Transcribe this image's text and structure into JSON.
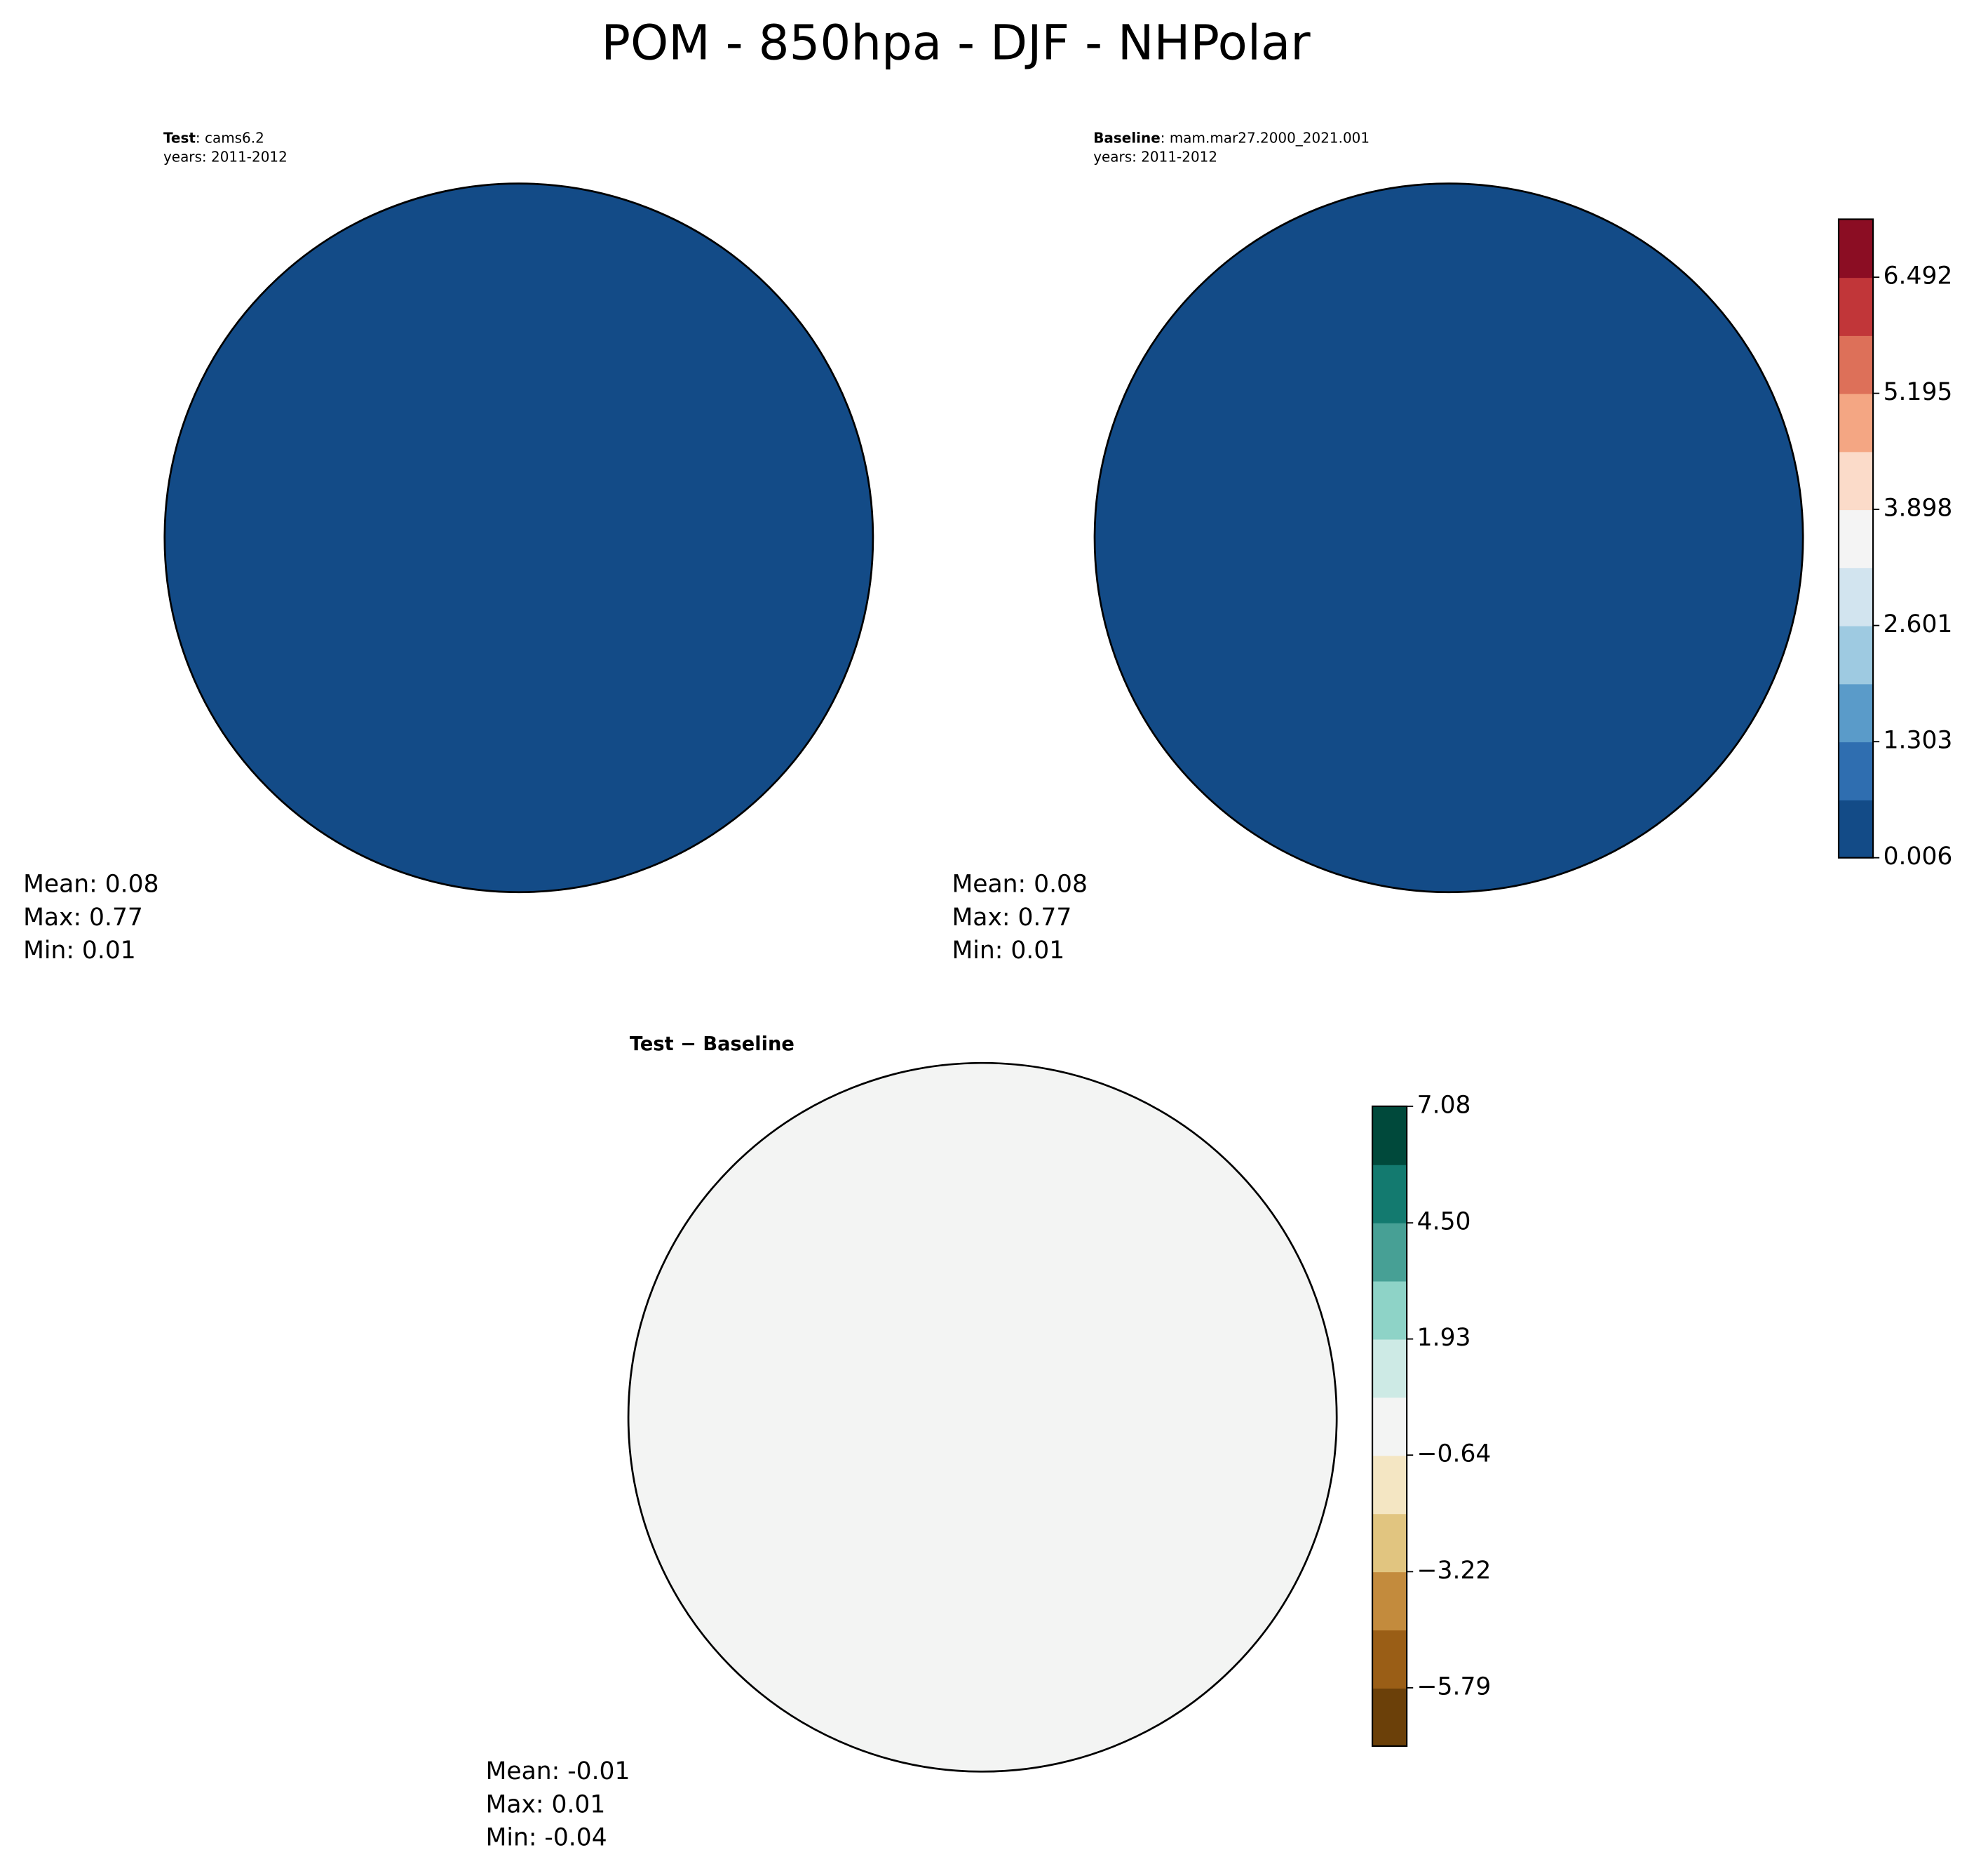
{
  "title": "POM - 850hpa - DJF - NHPolar",
  "chart_data": [
    {
      "type": "polar-map",
      "label_bold": "Test",
      "label_text": ": cams6.2",
      "subtitle": "years: 2011-2012",
      "color": "#134b87",
      "stats": [
        "Mean:  0.08",
        "Max:  0.77",
        "Min:  0.01"
      ]
    },
    {
      "type": "polar-map",
      "label_bold": "Baseline",
      "label_text": ": mam.mar27.2000_2021.001",
      "subtitle": "years: 2011-2012",
      "color": "#134b87",
      "stats": [
        "Mean:  0.08",
        "Max:  0.77",
        "Min:  0.01"
      ],
      "colorbar": {
        "ylim": [
          0.006,
          7.14
        ],
        "yticks": [
          0.006,
          1.303,
          2.601,
          3.898,
          5.195,
          6.492
        ],
        "colors": [
          "#134b87",
          "#2f6eb0",
          "#5a9bc9",
          "#9ecae1",
          "#d2e4ef",
          "#f4f4f4",
          "#fbdbc9",
          "#f4a683",
          "#dd7059",
          "#c13639",
          "#8b0d23"
        ]
      }
    },
    {
      "type": "polar-map",
      "label_bold": "Test − Baseline",
      "color": "#f3f4f3",
      "stats": [
        "Mean: -0.01",
        "Max:  0.01",
        "Min: -0.04"
      ],
      "colorbar": {
        "ylim": [
          -7.08,
          7.08
        ],
        "yticks": [
          {
            "value": -5.79,
            "label": "−5.79"
          },
          {
            "value": -3.22,
            "label": "−3.22"
          },
          {
            "value": -0.64,
            "label": "−0.64"
          },
          1.93,
          {
            "value": 4.5,
            "label": "4.50"
          },
          7.08
        ],
        "colors": [
          "#6b4009",
          "#9a5e16",
          "#c38b3d",
          "#e1c580",
          "#f4e6c3",
          "#f3f4f3",
          "#cdeae5",
          "#8ed3c7",
          "#47a095",
          "#137a6f",
          "#00493b"
        ]
      }
    }
  ]
}
